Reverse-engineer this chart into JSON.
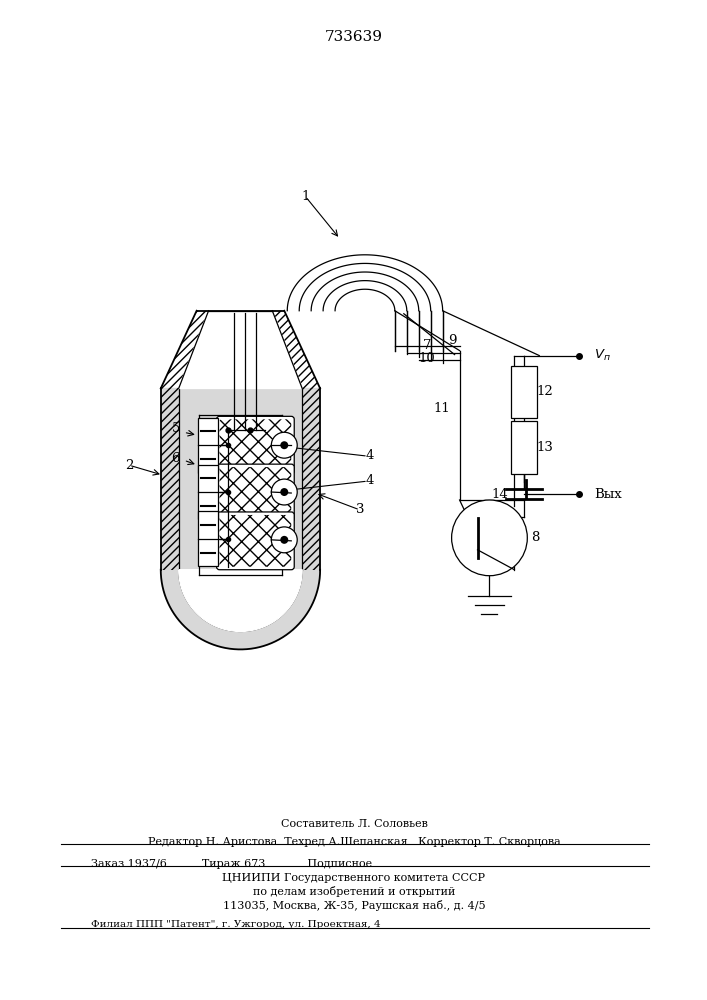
{
  "title": "733639",
  "bg": "#ffffff",
  "lc": "#000000",
  "footer_lines": [
    "Составитель Л. Соловьев",
    "Редактор Н. Аристова  Техред А.Шепанская   Корректор Т. Скворцова",
    "Заказ 1937/6          Тираж 673            Подписное",
    "ЦНИИПИ Государственного комитета СССР",
    "по делам изобретений и открытий",
    "113035, Москва, Ж-35, Раушская наб., д. 4/5",
    "Филиал ППП \"Патент\", г. Ужгород, ул. Проектная, 4"
  ]
}
